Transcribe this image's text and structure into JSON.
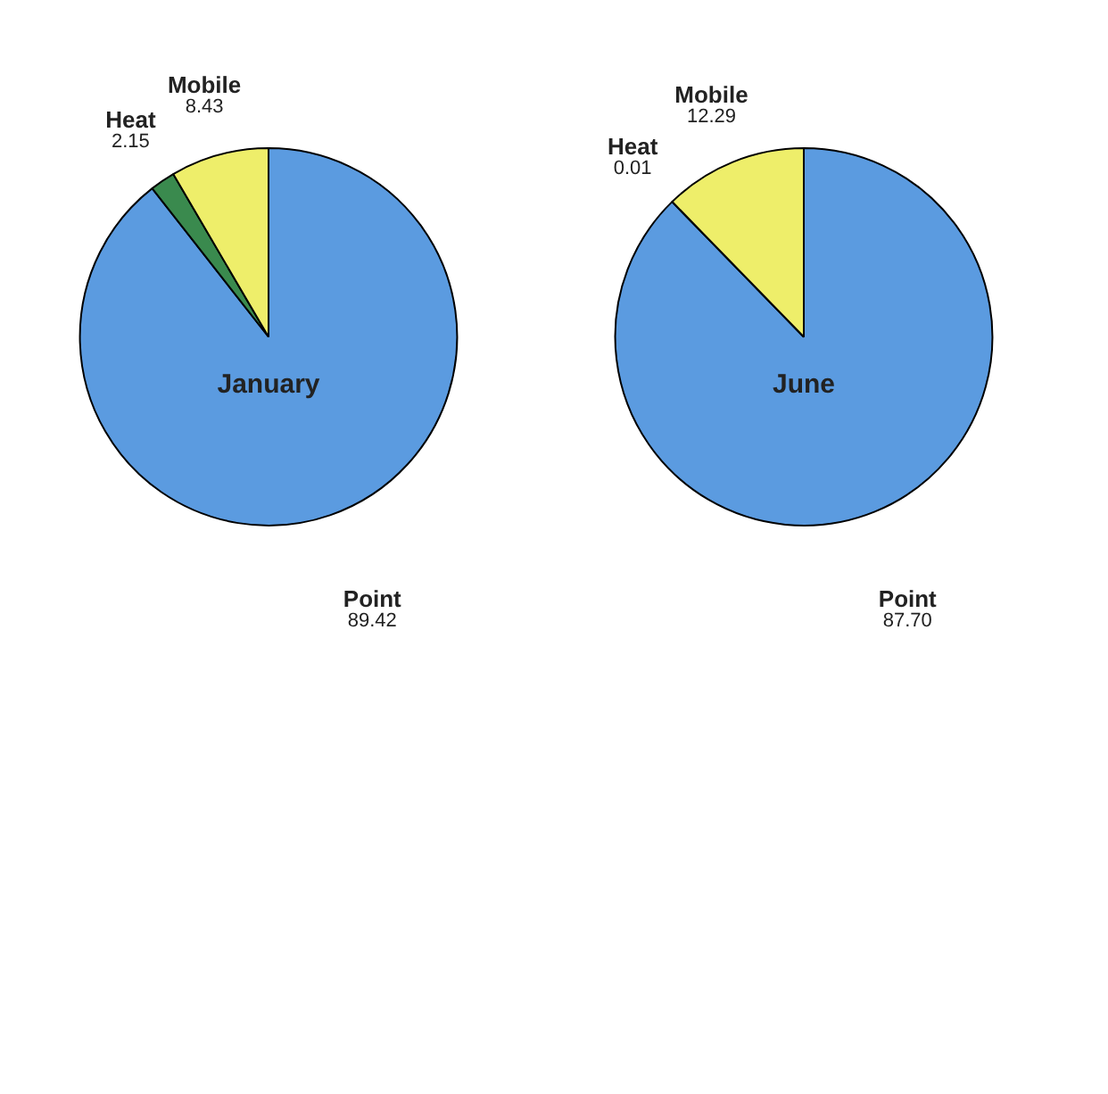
{
  "chart_data": [
    {
      "type": "pie",
      "title": "January",
      "categories": [
        "Point",
        "Heat",
        "Mobile"
      ],
      "values": [
        89.42,
        2.15,
        8.43
      ],
      "value_labels": [
        "89.42",
        "2.15",
        "8.43"
      ],
      "colors": [
        "#5b9be0",
        "#3a8a4e",
        "#eeee6a"
      ]
    },
    {
      "type": "pie",
      "title": "June",
      "categories": [
        "Point",
        "Heat",
        "Mobile"
      ],
      "values": [
        87.7,
        0.01,
        12.29
      ],
      "value_labels": [
        "87.70",
        "0.01",
        "12.29"
      ],
      "colors": [
        "#5b9be0",
        "#3a8a4e",
        "#eeee6a"
      ]
    }
  ]
}
